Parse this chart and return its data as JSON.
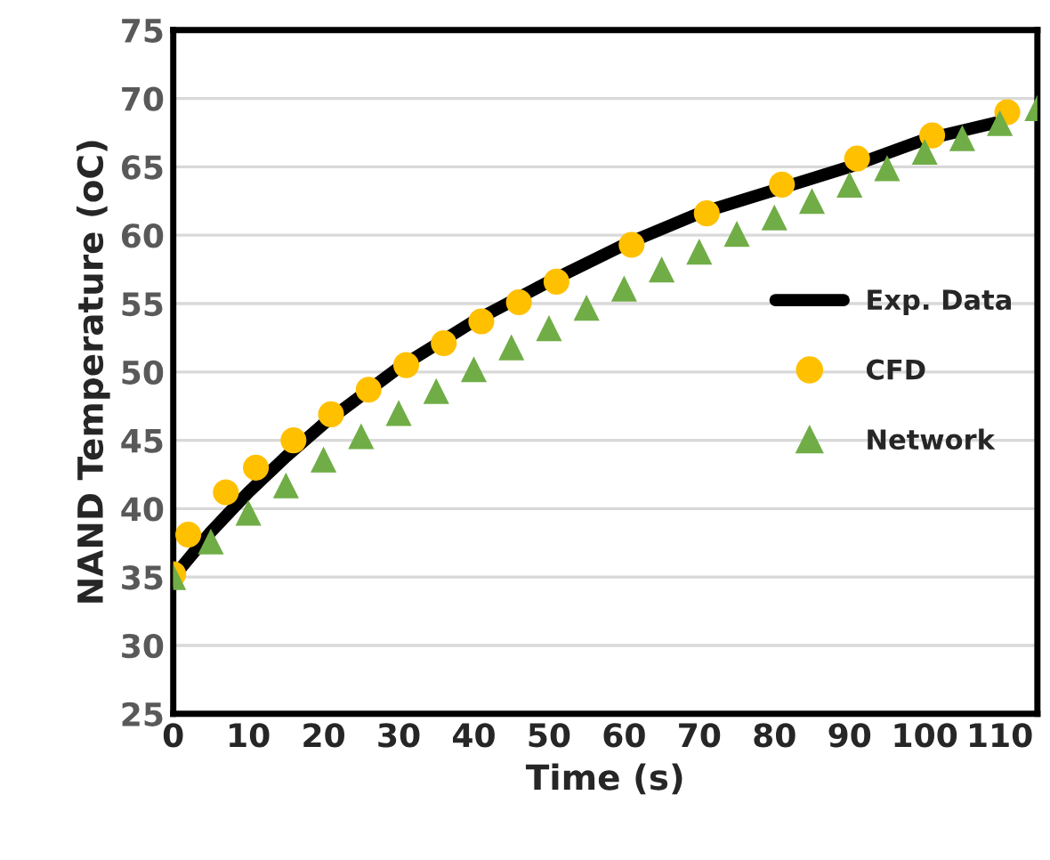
{
  "chart_data": {
    "type": "line",
    "xlabel": "Time (s)",
    "ylabel": "NAND Temperature (oC)",
    "xlim": [
      0,
      115
    ],
    "xticks": [
      0,
      10,
      20,
      30,
      40,
      50,
      60,
      70,
      80,
      90,
      100,
      110
    ],
    "ylim": [
      25,
      75
    ],
    "yticks": [
      25,
      30,
      35,
      40,
      45,
      50,
      55,
      60,
      65,
      70,
      75
    ],
    "grid": "y",
    "legend": "center right",
    "series": [
      {
        "name": "Exp. Data",
        "color": "#000000",
        "marker": "none",
        "line_style": "solid",
        "x": [
          0,
          5,
          10,
          15,
          20,
          30,
          40,
          50,
          60,
          70,
          80,
          90,
          100,
          110
        ],
        "values": [
          35,
          38.3,
          41.2,
          43.8,
          46.2,
          50.3,
          53.7,
          56.6,
          59.3,
          61.6,
          63.3,
          65.0,
          67.0,
          68.3
        ]
      },
      {
        "name": "CFD",
        "type": "scatter",
        "color": "#ffc000",
        "marker": "circle",
        "x": [
          0,
          2,
          7,
          11,
          16,
          21,
          26,
          31,
          36,
          41,
          46,
          51,
          61,
          71,
          81,
          91,
          101,
          111
        ],
        "values": [
          35.2,
          38.1,
          41.2,
          43.0,
          45.0,
          46.9,
          48.7,
          50.5,
          52.1,
          53.7,
          55.1,
          56.6,
          59.3,
          61.6,
          63.7,
          65.6,
          67.3,
          69.0
        ]
      },
      {
        "name": "Network",
        "type": "scatter",
        "color": "#70ad47",
        "marker": "triangle",
        "x": [
          0,
          5,
          10,
          15,
          20,
          25,
          30,
          35,
          40,
          45,
          50,
          55,
          60,
          65,
          70,
          75,
          80,
          85,
          90,
          95,
          100,
          105,
          110,
          115
        ],
        "values": [
          35.0,
          37.6,
          39.7,
          41.7,
          43.6,
          45.3,
          47.0,
          48.6,
          50.2,
          51.8,
          53.2,
          54.7,
          56.1,
          57.5,
          58.8,
          60.1,
          61.3,
          62.5,
          63.7,
          64.9,
          66.1,
          67.1,
          68.2,
          69.3
        ]
      }
    ]
  }
}
